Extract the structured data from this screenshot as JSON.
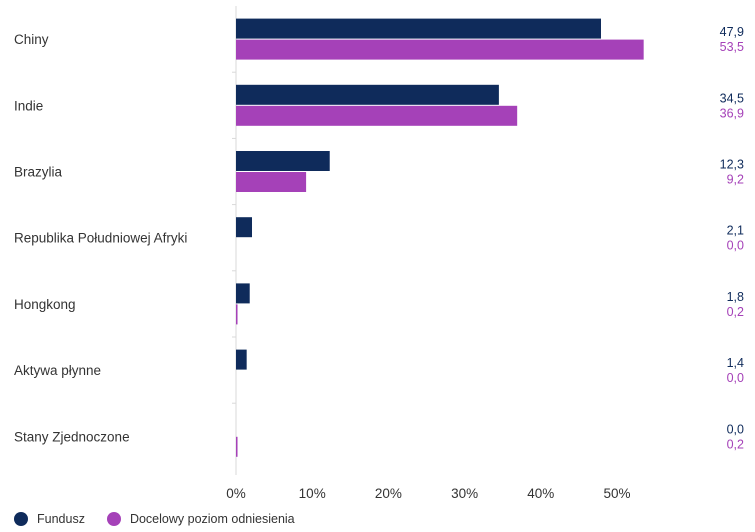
{
  "chart_data": {
    "type": "bar",
    "orientation": "horizontal",
    "categories": [
      "Chiny",
      "Indie",
      "Brazylia",
      "Republika Południowej Afryki",
      "Hongkong",
      "Aktywa płynne",
      "Stany Zjednoczone"
    ],
    "series": [
      {
        "name": "Fundusz",
        "color": "#0f2b5b",
        "values": [
          47.9,
          34.5,
          12.3,
          2.1,
          1.8,
          1.4,
          0.0
        ],
        "labels": [
          "47,9",
          "34,5",
          "12,3",
          "2,1",
          "1,8",
          "1,4",
          "0,0"
        ]
      },
      {
        "name": "Docelowy poziom odniesienia",
        "color": "#a541b8",
        "values": [
          53.5,
          36.9,
          9.2,
          0.0,
          0.2,
          0.0,
          0.2
        ],
        "labels": [
          "53,5",
          "36,9",
          "9,2",
          "0,0",
          "0,2",
          "0,0",
          "0,2"
        ]
      }
    ],
    "xticks": [
      "0%",
      "10%",
      "20%",
      "30%",
      "40%",
      "50%"
    ],
    "xlim": [
      0,
      60
    ],
    "title": "",
    "xlabel": "",
    "ylabel": "",
    "grid": false,
    "legend": "bottom-left"
  }
}
